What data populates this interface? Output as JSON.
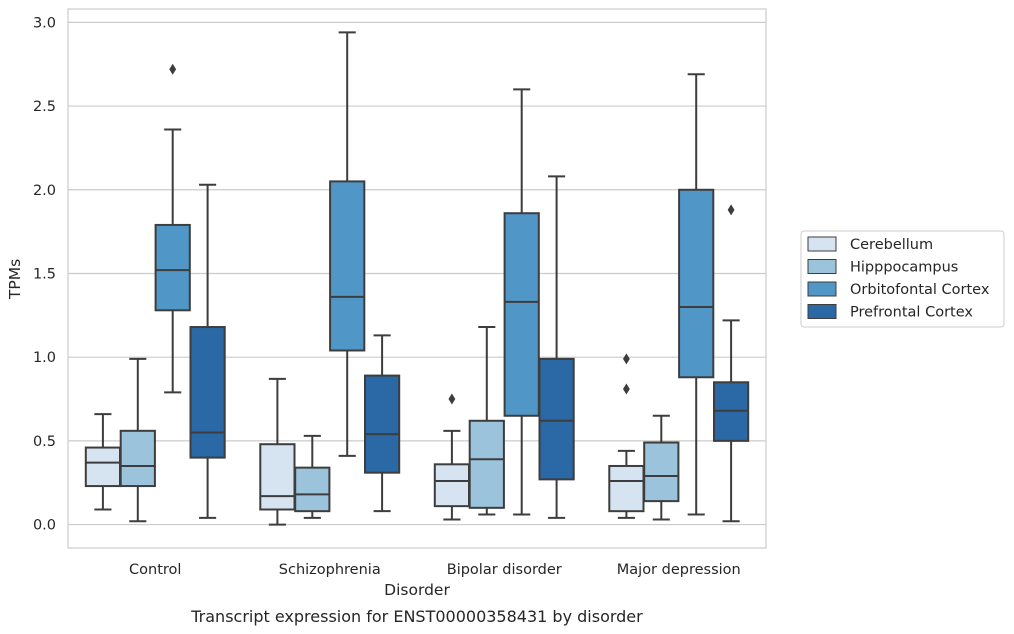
{
  "caption": "Transcript expression for ENST00000358431 by disorder",
  "chart_data": {
    "type": "box",
    "xlabel": "Disorder",
    "ylabel": "TPMs",
    "ylim": [
      -0.14,
      3.08
    ],
    "yticks": [
      "0.0",
      "0.5",
      "1.0",
      "1.5",
      "2.0",
      "2.5",
      "3.0"
    ],
    "grid": true,
    "legend_position": "right",
    "categories": [
      "Control",
      "Schizophrenia",
      "Bipolar disorder",
      "Major depression"
    ],
    "series": [
      {
        "name": "Cerebellum",
        "color": "#d6e4f2",
        "boxes": [
          {
            "whisker_low": 0.09,
            "q1": 0.23,
            "median": 0.37,
            "q3": 0.46,
            "whisker_high": 0.66,
            "outliers": []
          },
          {
            "whisker_low": 0.0,
            "q1": 0.09,
            "median": 0.17,
            "q3": 0.48,
            "whisker_high": 0.87,
            "outliers": []
          },
          {
            "whisker_low": 0.03,
            "q1": 0.11,
            "median": 0.26,
            "q3": 0.36,
            "whisker_high": 0.56,
            "outliers": [
              0.75
            ]
          },
          {
            "whisker_low": 0.04,
            "q1": 0.08,
            "median": 0.26,
            "q3": 0.35,
            "whisker_high": 0.44,
            "outliers": [
              0.81,
              0.99
            ]
          }
        ]
      },
      {
        "name": "Hipppocampus",
        "color": "#9bc3db",
        "boxes": [
          {
            "whisker_low": 0.02,
            "q1": 0.23,
            "median": 0.35,
            "q3": 0.56,
            "whisker_high": 0.99,
            "outliers": []
          },
          {
            "whisker_low": 0.04,
            "q1": 0.08,
            "median": 0.18,
            "q3": 0.34,
            "whisker_high": 0.53,
            "outliers": []
          },
          {
            "whisker_low": 0.06,
            "q1": 0.1,
            "median": 0.39,
            "q3": 0.62,
            "whisker_high": 1.18,
            "outliers": []
          },
          {
            "whisker_low": 0.03,
            "q1": 0.14,
            "median": 0.29,
            "q3": 0.49,
            "whisker_high": 0.65,
            "outliers": []
          }
        ]
      },
      {
        "name": "Orbitofontal Cortex",
        "color": "#5097c7",
        "boxes": [
          {
            "whisker_low": 0.79,
            "q1": 1.28,
            "median": 1.52,
            "q3": 1.79,
            "whisker_high": 2.36,
            "outliers": [
              2.72
            ]
          },
          {
            "whisker_low": 0.41,
            "q1": 1.04,
            "median": 1.36,
            "q3": 2.05,
            "whisker_high": 2.94,
            "outliers": []
          },
          {
            "whisker_low": 0.06,
            "q1": 0.65,
            "median": 1.33,
            "q3": 1.86,
            "whisker_high": 2.6,
            "outliers": []
          },
          {
            "whisker_low": 0.06,
            "q1": 0.88,
            "median": 1.3,
            "q3": 2.0,
            "whisker_high": 2.69,
            "outliers": []
          }
        ]
      },
      {
        "name": "Prefrontal Cortex",
        "color": "#2a68a6",
        "boxes": [
          {
            "whisker_low": 0.04,
            "q1": 0.4,
            "median": 0.55,
            "q3": 1.18,
            "whisker_high": 2.03,
            "outliers": []
          },
          {
            "whisker_low": 0.08,
            "q1": 0.31,
            "median": 0.54,
            "q3": 0.89,
            "whisker_high": 1.13,
            "outliers": []
          },
          {
            "whisker_low": 0.04,
            "q1": 0.27,
            "median": 0.62,
            "q3": 0.99,
            "whisker_high": 2.08,
            "outliers": []
          },
          {
            "whisker_low": 0.02,
            "q1": 0.5,
            "median": 0.68,
            "q3": 0.85,
            "whisker_high": 1.22,
            "outliers": [
              1.88
            ]
          }
        ]
      }
    ]
  }
}
